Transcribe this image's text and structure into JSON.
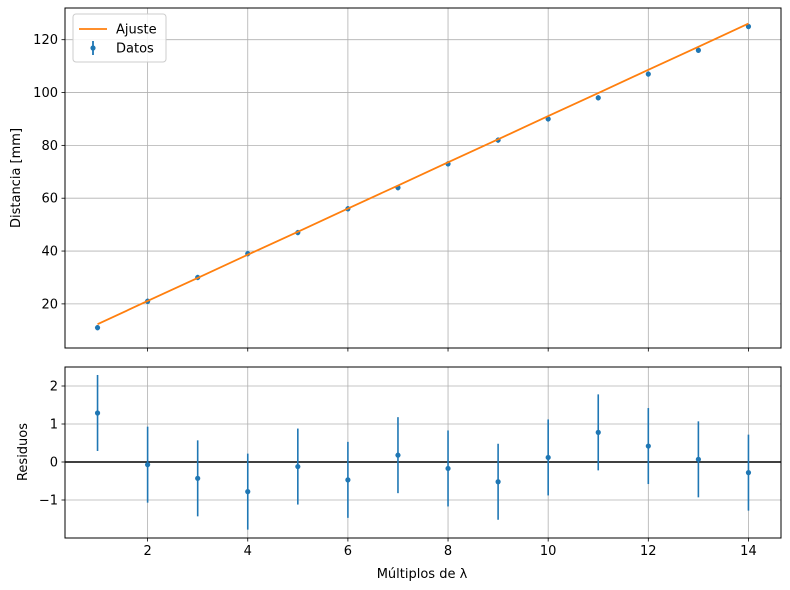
{
  "chart_data": [
    {
      "type": "line",
      "xlabel": "",
      "ylabel": "Distancia [mm]",
      "xlim": [
        0.35,
        14.65
      ],
      "ylim": [
        3.3,
        132.0
      ],
      "xticks": [
        2,
        4,
        6,
        8,
        10,
        12,
        14
      ],
      "yticks": [
        20,
        40,
        60,
        80,
        100,
        120
      ],
      "ytick_labels": [
        "20",
        "40",
        "60",
        "80",
        "100",
        "120"
      ],
      "grid": true,
      "legend_position": "top-left",
      "series": [
        {
          "name": "Ajuste",
          "kind": "line",
          "color": "#ff7f0e",
          "x": [
            1,
            2,
            3,
            4,
            5,
            6,
            7,
            8,
            9,
            10,
            11,
            12,
            13,
            14
          ],
          "y": [
            12.3,
            21.1,
            29.8,
            38.6,
            47.3,
            56.1,
            64.8,
            73.6,
            82.3,
            91.1,
            99.8,
            108.6,
            117.3,
            126.1
          ]
        },
        {
          "name": "Datos",
          "kind": "errorbar",
          "color": "#1f77b4",
          "x": [
            1,
            2,
            3,
            4,
            5,
            6,
            7,
            8,
            9,
            10,
            11,
            12,
            13,
            14
          ],
          "y": [
            11.0,
            21.0,
            30.0,
            39.0,
            47.0,
            56.0,
            64.0,
            73.0,
            82.0,
            90.0,
            98.0,
            107.0,
            116.0,
            125.0
          ],
          "yerr": [
            1.0,
            1.0,
            1.0,
            1.0,
            1.0,
            1.0,
            1.0,
            1.0,
            1.0,
            1.0,
            1.0,
            1.0,
            1.0,
            1.0
          ]
        }
      ]
    },
    {
      "type": "scatter",
      "xlabel": "Múltiplos de λ",
      "ylabel": "Residuos",
      "xlim": [
        0.35,
        14.65
      ],
      "ylim": [
        -2.0,
        2.5
      ],
      "xticks": [
        2,
        4,
        6,
        8,
        10,
        12,
        14
      ],
      "xtick_labels": [
        "2",
        "4",
        "6",
        "8",
        "10",
        "12",
        "14"
      ],
      "yticks": [
        -1,
        0,
        1,
        2
      ],
      "ytick_labels": [
        "−1",
        "0",
        "1",
        "2"
      ],
      "grid": true,
      "zero_line": 0,
      "series": [
        {
          "kind": "errorbar",
          "color": "#1f77b4",
          "x": [
            1,
            2,
            3,
            4,
            5,
            6,
            7,
            8,
            9,
            10,
            11,
            12,
            13,
            14
          ],
          "y": [
            1.29,
            -0.07,
            -0.43,
            -0.78,
            -0.12,
            -0.47,
            0.18,
            -0.17,
            -0.52,
            0.12,
            0.78,
            0.42,
            0.07,
            -0.28
          ],
          "yerr": [
            1.0,
            1.0,
            1.0,
            1.0,
            1.0,
            1.0,
            1.0,
            1.0,
            1.0,
            1.0,
            1.0,
            1.0,
            1.0,
            1.0
          ]
        }
      ]
    }
  ]
}
